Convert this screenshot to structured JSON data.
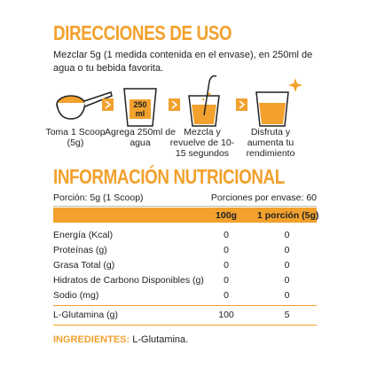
{
  "directions": {
    "title": "DIRECCIONES DE USO",
    "instructions": "Mezclar 5g (1 medida contenida en el envase), en 250ml de agua o tu bebida favorita.",
    "glass_line1": "250",
    "glass_line2": "ml",
    "steps": [
      "Toma 1 Scoop (5g)",
      "Agrega 250ml de agua",
      "Mezcla y revuelve de 10-15 segundos",
      "Disfruta y aumenta tu rendimiento"
    ]
  },
  "nutrition": {
    "title": "INFORMACIÓN NUTRICIONAL",
    "serving": "Porción: 5g (1 Scoop)",
    "servings_per_container": "Porciones por envase: 60",
    "columns": [
      "100g",
      "1 porción (5g)"
    ],
    "rows": [
      [
        "Energía (Kcal)",
        0,
        0
      ],
      [
        "Proteínas (g)",
        0,
        0
      ],
      [
        "Grasa Total (g)",
        0,
        0
      ],
      [
        "Hidratos de Carbono Disponibles (g)",
        0,
        0
      ],
      [
        "Sodio (mg)",
        0,
        0
      ],
      [
        "L-Glutamina (g)",
        100,
        5
      ]
    ]
  },
  "ingredients": {
    "label": "INGREDIENTES:",
    "text": "L-Glutamina."
  }
}
